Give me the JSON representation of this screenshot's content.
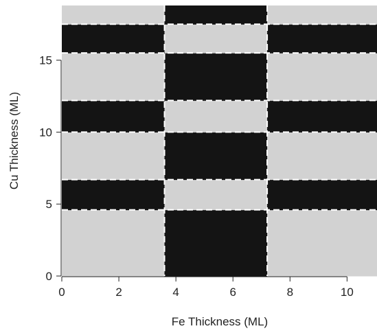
{
  "chart_data": {
    "type": "heatmap",
    "xlabel": "Fe Thickness (ML)",
    "ylabel": "Cu Thickness (ML)",
    "x_edges": [
      0,
      3.6,
      7.2,
      11.05
    ],
    "y_edges": [
      0,
      4.6,
      6.7,
      10,
      12.2,
      15.5,
      17.5,
      18.8
    ],
    "values": [
      [
        1,
        0,
        1
      ],
      [
        0,
        1,
        0
      ],
      [
        1,
        0,
        1
      ],
      [
        0,
        1,
        0
      ],
      [
        1,
        0,
        1
      ],
      [
        0,
        1,
        0
      ],
      [
        1,
        0,
        1
      ]
    ],
    "colormap": [
      "#141414",
      "#d2d2d2"
    ],
    "guide_x": [
      3.6,
      7.2
    ],
    "guide_y": [
      4.6,
      6.7,
      10,
      12.2,
      15.5,
      17.5
    ],
    "xlim": [
      0,
      11.05
    ],
    "ylim": [
      0,
      18.8
    ],
    "xticks": [
      0,
      2,
      4,
      6,
      8,
      10
    ],
    "yticks": [
      0,
      5,
      10,
      15
    ]
  }
}
